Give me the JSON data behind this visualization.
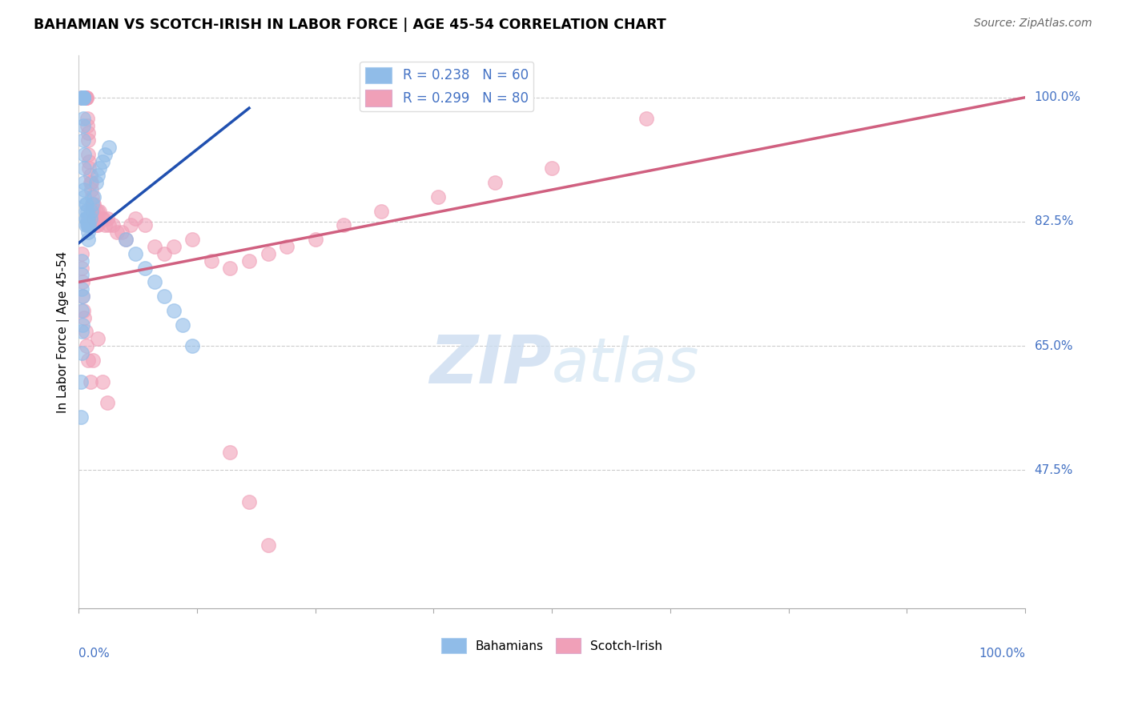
{
  "title": "BAHAMIAN VS SCOTCH-IRISH IN LABOR FORCE | AGE 45-54 CORRELATION CHART",
  "source": "Source: ZipAtlas.com",
  "ylabel": "In Labor Force | Age 45-54",
  "ytick_labels": [
    "100.0%",
    "82.5%",
    "65.0%",
    "47.5%"
  ],
  "ytick_values": [
    1.0,
    0.825,
    0.65,
    0.475
  ],
  "bahamians_color": "#90bce8",
  "scotchirish_color": "#f0a0b8",
  "trendline_blue_color": "#2050b0",
  "trendline_pink_color": "#d06080",
  "watermark_color": "#ccddf0",
  "blue_r": 0.238,
  "blue_n": 60,
  "pink_r": 0.299,
  "pink_n": 80,
  "blue_scatter_x": [
    0.003,
    0.004,
    0.004,
    0.005,
    0.005,
    0.005,
    0.005,
    0.005,
    0.005,
    0.005,
    0.005,
    0.005,
    0.005,
    0.005,
    0.006,
    0.006,
    0.006,
    0.006,
    0.006,
    0.007,
    0.007,
    0.007,
    0.007,
    0.008,
    0.008,
    0.009,
    0.009,
    0.01,
    0.01,
    0.01,
    0.01,
    0.011,
    0.012,
    0.013,
    0.014,
    0.016,
    0.018,
    0.02,
    0.022,
    0.025,
    0.028,
    0.032,
    0.003,
    0.003,
    0.003,
    0.003,
    0.003,
    0.003,
    0.004,
    0.004,
    0.05,
    0.06,
    0.07,
    0.08,
    0.09,
    0.1,
    0.11,
    0.12,
    0.002,
    0.002
  ],
  "blue_scatter_y": [
    1.0,
    1.0,
    1.0,
    1.0,
    1.0,
    1.0,
    1.0,
    1.0,
    1.0,
    1.0,
    1.0,
    0.97,
    0.96,
    0.94,
    0.92,
    0.9,
    0.88,
    0.87,
    0.86,
    0.85,
    0.84,
    0.83,
    0.82,
    0.85,
    0.83,
    0.84,
    0.82,
    0.83,
    0.82,
    0.81,
    0.8,
    0.82,
    0.83,
    0.84,
    0.85,
    0.86,
    0.88,
    0.89,
    0.9,
    0.91,
    0.92,
    0.93,
    0.77,
    0.75,
    0.73,
    0.7,
    0.67,
    0.64,
    0.72,
    0.68,
    0.8,
    0.78,
    0.76,
    0.74,
    0.72,
    0.7,
    0.68,
    0.65,
    0.6,
    0.55
  ],
  "pink_scatter_x": [
    0.003,
    0.003,
    0.004,
    0.005,
    0.005,
    0.005,
    0.005,
    0.006,
    0.006,
    0.006,
    0.007,
    0.007,
    0.008,
    0.008,
    0.009,
    0.009,
    0.01,
    0.01,
    0.01,
    0.011,
    0.011,
    0.012,
    0.012,
    0.013,
    0.013,
    0.014,
    0.015,
    0.015,
    0.016,
    0.016,
    0.018,
    0.018,
    0.02,
    0.02,
    0.022,
    0.024,
    0.026,
    0.028,
    0.03,
    0.032,
    0.036,
    0.04,
    0.045,
    0.05,
    0.055,
    0.06,
    0.07,
    0.08,
    0.09,
    0.1,
    0.12,
    0.14,
    0.16,
    0.18,
    0.2,
    0.22,
    0.25,
    0.28,
    0.32,
    0.38,
    0.44,
    0.5,
    0.6,
    0.003,
    0.003,
    0.004,
    0.004,
    0.005,
    0.006,
    0.007,
    0.008,
    0.01,
    0.012,
    0.015,
    0.02,
    0.025,
    0.03,
    0.16,
    0.18,
    0.2
  ],
  "pink_scatter_y": [
    1.0,
    1.0,
    1.0,
    1.0,
    1.0,
    1.0,
    1.0,
    1.0,
    1.0,
    1.0,
    1.0,
    1.0,
    1.0,
    1.0,
    0.97,
    0.96,
    0.95,
    0.94,
    0.92,
    0.91,
    0.9,
    0.89,
    0.88,
    0.88,
    0.87,
    0.86,
    0.85,
    0.84,
    0.85,
    0.83,
    0.84,
    0.82,
    0.84,
    0.82,
    0.84,
    0.83,
    0.83,
    0.82,
    0.83,
    0.82,
    0.82,
    0.81,
    0.81,
    0.8,
    0.82,
    0.83,
    0.82,
    0.79,
    0.78,
    0.79,
    0.8,
    0.77,
    0.76,
    0.77,
    0.78,
    0.79,
    0.8,
    0.82,
    0.84,
    0.86,
    0.88,
    0.9,
    0.97,
    0.78,
    0.76,
    0.74,
    0.72,
    0.7,
    0.69,
    0.67,
    0.65,
    0.63,
    0.6,
    0.63,
    0.66,
    0.6,
    0.57,
    0.5,
    0.43,
    0.37
  ],
  "blue_trend_x": [
    0.0,
    0.18
  ],
  "blue_trend_y": [
    0.795,
    0.985
  ],
  "pink_trend_x": [
    0.0,
    1.0
  ],
  "pink_trend_y": [
    0.74,
    1.0
  ],
  "xlim": [
    0.0,
    1.0
  ],
  "ylim": [
    0.28,
    1.06
  ]
}
